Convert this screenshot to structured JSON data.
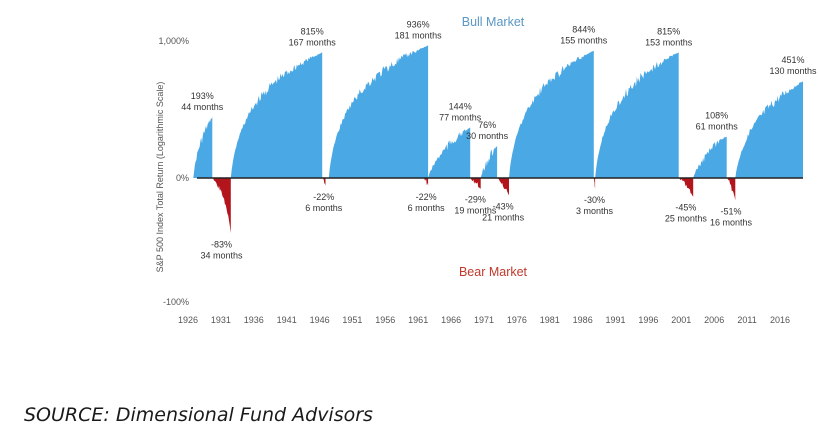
{
  "chart_data": {
    "type": "area",
    "title": "",
    "xlabel": "",
    "ylabel": "S&P 500 Index Total Return (Logarithmic Scale)",
    "y_scale": "log",
    "y_ticks": [
      {
        "label": "1,000%",
        "value": 1000
      },
      {
        "label": "0%",
        "value": 0
      },
      {
        "label": "-100%",
        "value": -100
      }
    ],
    "x_ticks": [
      "1926",
      "1931",
      "1936",
      "1941",
      "1946",
      "1951",
      "1956",
      "1961",
      "1966",
      "1971",
      "1976",
      "1981",
      "1986",
      "1991",
      "1996",
      "2001",
      "2006",
      "2011",
      "2016"
    ],
    "x_range": [
      1926,
      2019.5
    ],
    "zone_labels": {
      "bull": "Bull Market",
      "bear": "Bear Market"
    },
    "colors": {
      "bull": "#4aa8e4",
      "bear": "#b2151b",
      "bull_text": "#5a97c4",
      "bear_text": "#c0392b",
      "axis": "#222222",
      "tick": "#555555"
    },
    "bull_markets": [
      {
        "start": 1926.8,
        "end": 1929.7,
        "return_pct": 193,
        "label_pct": "193%",
        "label_months": "44 months"
      },
      {
        "start": 1932.5,
        "end": 1946.4,
        "return_pct": 815,
        "label_pct": "815%",
        "label_months": "167 months"
      },
      {
        "start": 1947.4,
        "end": 1962.5,
        "return_pct": 936,
        "label_pct": "936%",
        "label_months": "181 months"
      },
      {
        "start": 1962.5,
        "end": 1968.9,
        "return_pct": 144,
        "label_pct": "144%",
        "label_months": "77 months"
      },
      {
        "start": 1970.5,
        "end": 1973.0,
        "return_pct": 76,
        "label_pct": "76%",
        "label_months": "30 months"
      },
      {
        "start": 1974.8,
        "end": 1987.7,
        "return_pct": 844,
        "label_pct": "844%",
        "label_months": "155 months"
      },
      {
        "start": 1987.9,
        "end": 2000.6,
        "return_pct": 815,
        "label_pct": "815%",
        "label_months": "153 months"
      },
      {
        "start": 2002.8,
        "end": 2007.9,
        "return_pct": 108,
        "label_pct": "108%",
        "label_months": "61 months"
      },
      {
        "start": 2009.2,
        "end": 2019.5,
        "return_pct": 451,
        "label_pct": "451%",
        "label_months": "130 months"
      }
    ],
    "bear_markets": [
      {
        "start": 1929.7,
        "end": 1932.5,
        "return_pct": -83,
        "label_pct": "-83%",
        "label_months": "34 months"
      },
      {
        "start": 1946.4,
        "end": 1946.9,
        "return_pct": -22,
        "label_pct": "-22%",
        "label_months": "6 months"
      },
      {
        "start": 1961.9,
        "end": 1962.5,
        "return_pct": -22,
        "label_pct": "-22%",
        "label_months": "6 months"
      },
      {
        "start": 1968.9,
        "end": 1970.5,
        "return_pct": -29,
        "label_pct": "-29%",
        "label_months": "19 months"
      },
      {
        "start": 1973.0,
        "end": 1974.8,
        "return_pct": -43,
        "label_pct": "-43%",
        "label_months": "21 months"
      },
      {
        "start": 1987.7,
        "end": 1987.9,
        "return_pct": -30,
        "label_pct": "-30%",
        "label_months": "3 months"
      },
      {
        "start": 2000.6,
        "end": 2002.8,
        "return_pct": -45,
        "label_pct": "-45%",
        "label_months": "25 months"
      },
      {
        "start": 2007.9,
        "end": 2009.2,
        "return_pct": -51,
        "label_pct": "-51%",
        "label_months": "16 months"
      }
    ]
  },
  "source": "SOURCE: Dimensional Fund Advisors"
}
